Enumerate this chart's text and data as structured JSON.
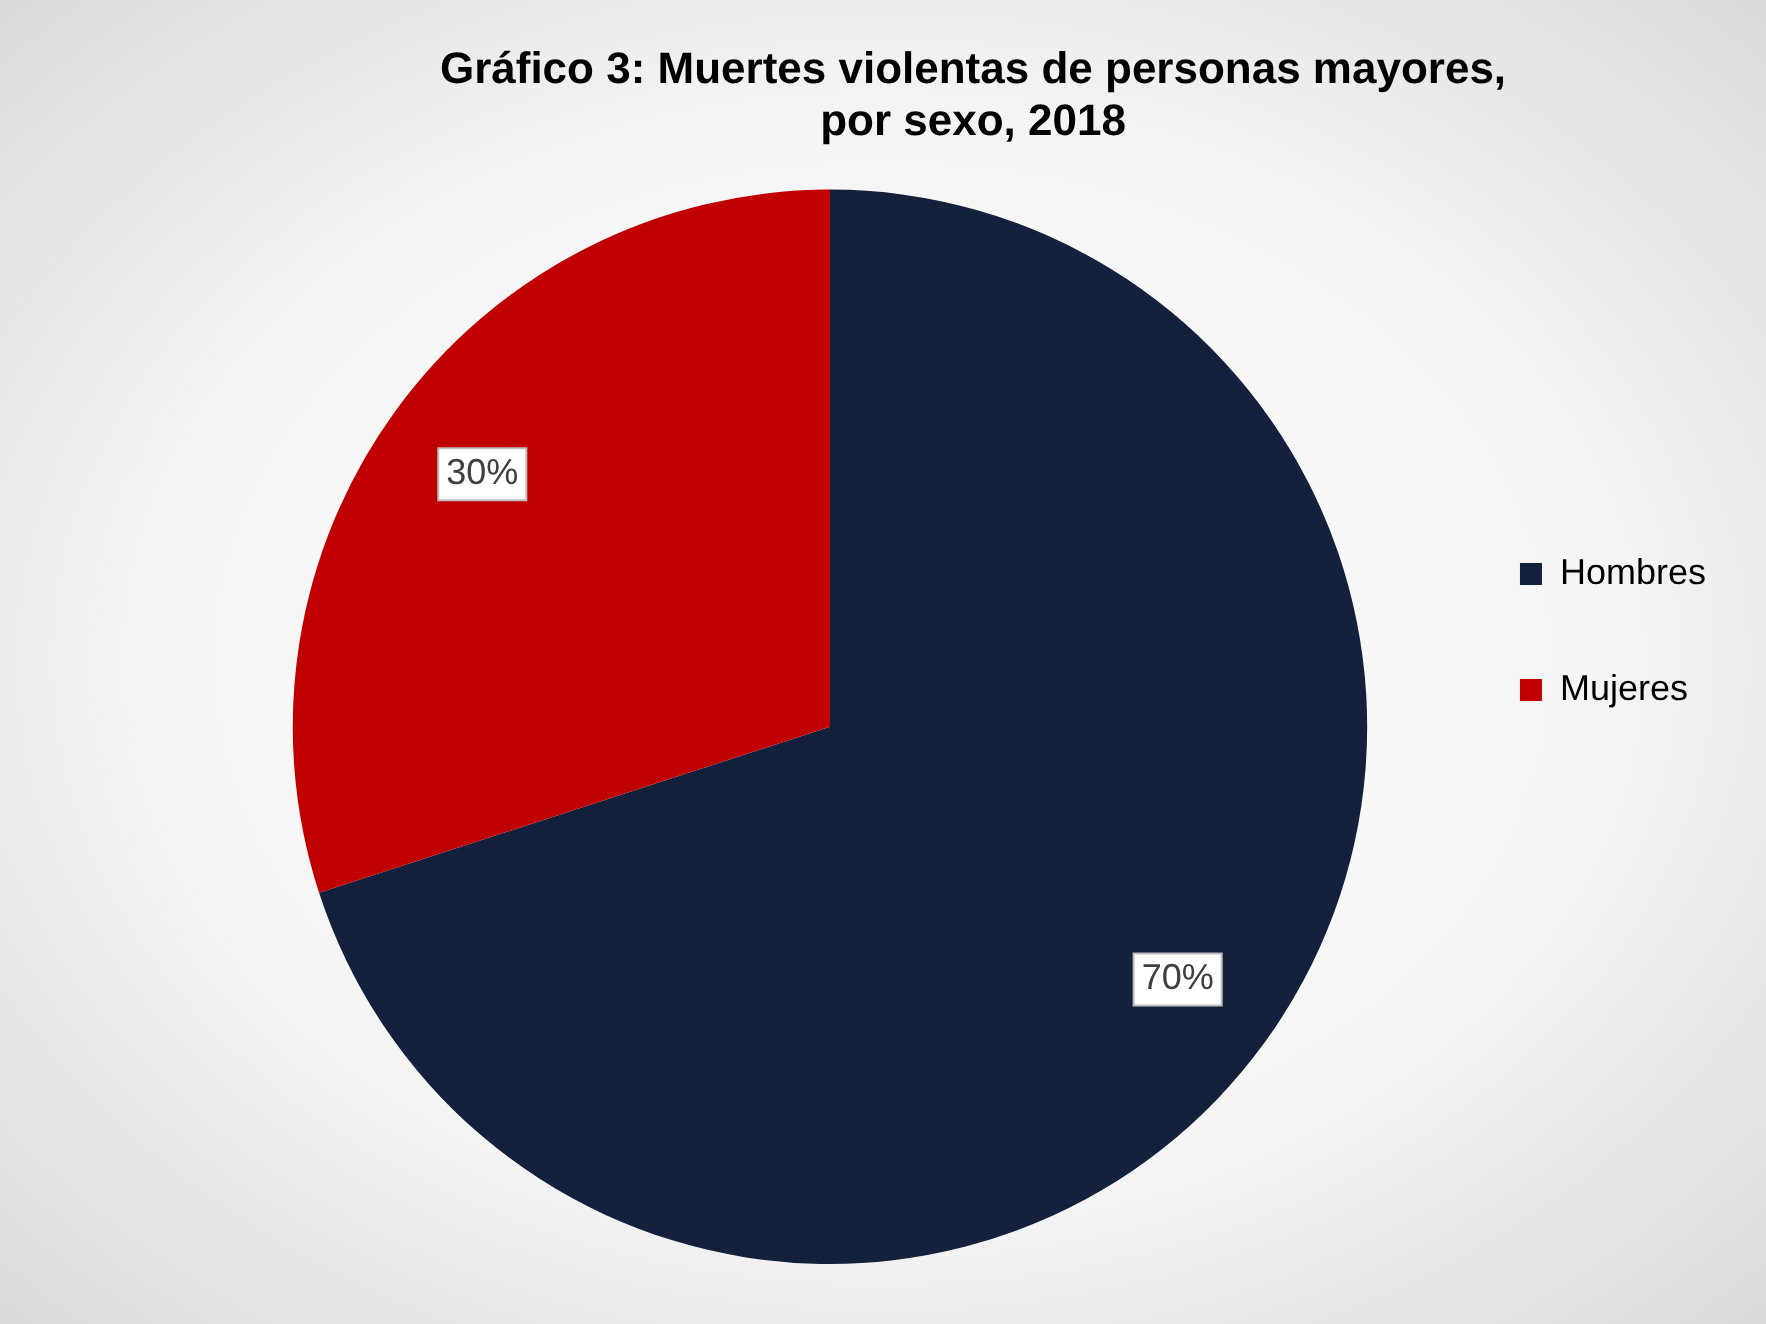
{
  "chart_data": {
    "type": "pie",
    "title": "Gráfico 3: Muertes violentas de personas mayores,\npor sexo, 2018",
    "categories": [
      "Hombres",
      "Mujeres"
    ],
    "values": [
      70,
      30
    ],
    "colors": [
      "#13213d",
      "#c00000"
    ],
    "value_labels": [
      "70%",
      "30%"
    ],
    "legend": "right"
  }
}
